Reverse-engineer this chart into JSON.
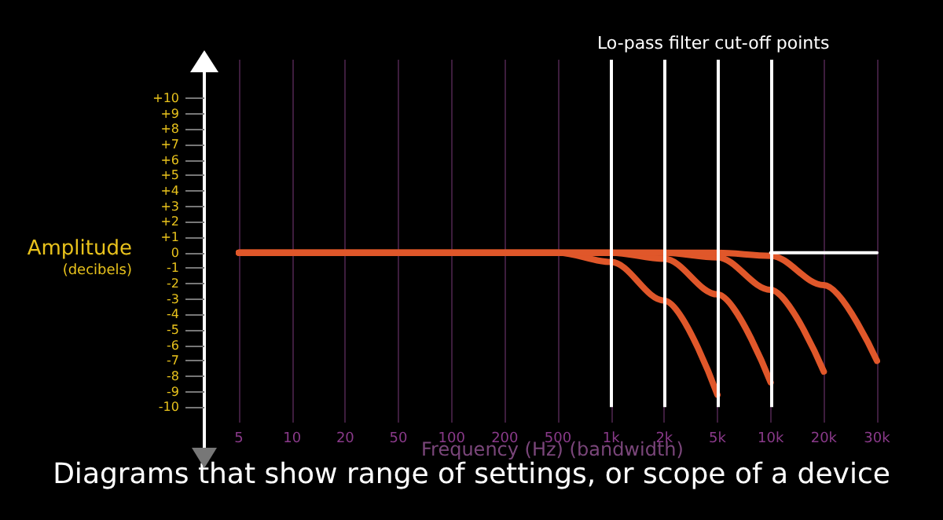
{
  "chart_data": {
    "type": "line",
    "ylabel": "Amplitude\n(decibels)",
    "xlabel": "Frequency (Hz) (bandwidth)",
    "annotations": [
      "Lo-pass filter cut-off points",
      "Diagrams that show range of settings, or scope of a device"
    ],
    "categories": [
      "5",
      "10",
      "20",
      "50",
      "100",
      "200",
      "500",
      "1k",
      "2k",
      "5k",
      "10k",
      "20k",
      "30k"
    ],
    "ylim": [
      -11,
      12.5
    ],
    "yticks": [
      {
        "value": 10,
        "label": "+10"
      },
      {
        "value": 9,
        "label": "+9"
      },
      {
        "value": 8,
        "label": "+8"
      },
      {
        "value": 7,
        "label": "+7"
      },
      {
        "value": 6,
        "label": "+6"
      },
      {
        "value": 5,
        "label": "+5"
      },
      {
        "value": 4,
        "label": "+4"
      },
      {
        "value": 3,
        "label": "+3"
      },
      {
        "value": 2,
        "label": "+2"
      },
      {
        "value": 1,
        "label": "+1"
      },
      0,
      -1,
      -2,
      -3,
      -4,
      -5,
      -6,
      -7,
      -8,
      -9,
      -10
    ],
    "grid": "x",
    "marker": "none",
    "line_style": "solid",
    "series": [
      {
        "color": "#e0572a",
        "values": [
          0,
          0,
          0,
          0,
          0,
          0,
          0,
          -0.6,
          -3.1,
          -9.2,
          null,
          null,
          null
        ]
      },
      {
        "color": "#e0572a",
        "values": [
          0,
          0,
          0,
          0,
          0,
          0,
          0,
          0,
          -0.4,
          -2.7,
          -8.4,
          null,
          null
        ]
      },
      {
        "color": "#e0572a",
        "values": [
          0,
          0,
          0,
          0,
          0,
          0,
          0,
          0,
          0,
          -0.3,
          -2.4,
          -7.7,
          null
        ]
      },
      {
        "color": "#e0572a",
        "values": [
          0,
          0,
          0,
          0,
          0,
          0,
          0,
          0,
          0,
          0,
          -0.2,
          -2.1,
          -7.0
        ]
      },
      {
        "color": "#ffffff",
        "values": [
          null,
          null,
          null,
          null,
          null,
          null,
          null,
          null,
          null,
          null,
          0,
          0,
          0
        ]
      }
    ],
    "ref_lines": [
      {
        "axis": "x",
        "value": "1k",
        "color": "#ffffff"
      },
      {
        "axis": "x",
        "value": "2k",
        "color": "#ffffff"
      },
      {
        "axis": "x",
        "value": "5k",
        "color": "#ffffff"
      },
      {
        "axis": "x",
        "value": "10k",
        "color": "#ffffff"
      }
    ]
  }
}
